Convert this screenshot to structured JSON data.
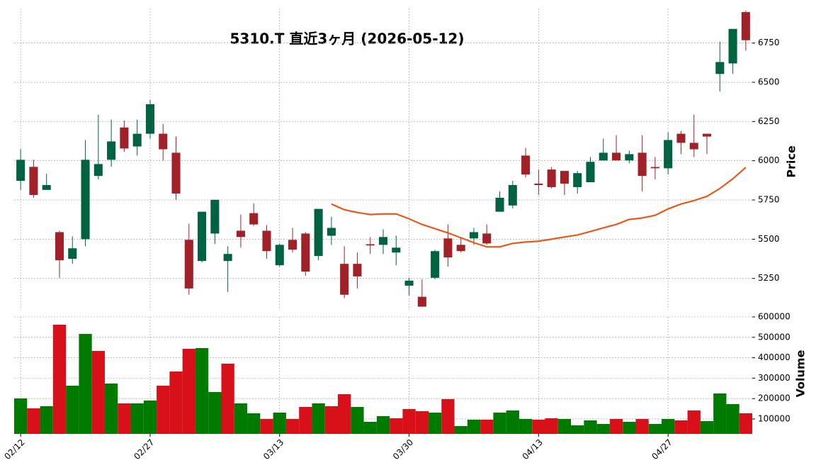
{
  "chart_data": [
    {
      "type": "candlestick",
      "title": "5310.T  直近3ヶ月  (2026-05-12)",
      "y_label": "Price",
      "categories": [
        "02/12",
        null,
        null,
        null,
        null,
        null,
        null,
        null,
        null,
        null,
        "02/27",
        null,
        null,
        null,
        null,
        null,
        null,
        null,
        null,
        null,
        "03/13",
        null,
        null,
        null,
        null,
        null,
        null,
        null,
        null,
        null,
        "03/30",
        null,
        null,
        null,
        null,
        null,
        null,
        null,
        null,
        null,
        "04/13",
        null,
        null,
        null,
        null,
        null,
        null,
        null,
        null,
        null,
        "04/27",
        null,
        null,
        null,
        null,
        null,
        null
      ],
      "open": [
        5872,
        5961,
        5814,
        5545,
        5375,
        5500,
        5903,
        6006,
        6212,
        6091,
        6172,
        6172,
        6051,
        5496,
        5361,
        5536,
        5361,
        5554,
        5666,
        5554,
        5334,
        5496,
        5536,
        5393,
        5522,
        5343,
        5343,
        5468,
        5464,
        5415,
        5204,
        5133,
        5254,
        5505,
        5464,
        5505,
        5536,
        5675,
        5715,
        6033,
        5854,
        5944,
        5935,
        5832,
        5863,
        6002,
        6051,
        6002,
        6051,
        5960,
        5952,
        6172,
        6114,
        6172,
        6553,
        6620,
        6947
      ],
      "high": [
        6073,
        6006,
        5917,
        5554,
        5518,
        6132,
        6293,
        6262,
        6257,
        6262,
        6387,
        6235,
        6154,
        5599,
        5675,
        5751,
        5455,
        5657,
        5729,
        5590,
        5473,
        5572,
        5545,
        5693,
        5643,
        5455,
        5415,
        5514,
        5563,
        5522,
        5254,
        5245,
        5433,
        5594,
        5514,
        5572,
        5594,
        5805,
        5872,
        6082,
        5944,
        5961,
        5935,
        5935,
        6024,
        6141,
        6163,
        6064,
        6163,
        6024,
        6181,
        6190,
        6293,
        6172,
        6759,
        6840,
        6956
      ],
      "low": [
        5814,
        5764,
        5814,
        5254,
        5343,
        5455,
        5881,
        5961,
        6056,
        6033,
        6141,
        6002,
        5751,
        5146,
        5352,
        5469,
        5164,
        5446,
        5585,
        5375,
        5325,
        5415,
        5267,
        5366,
        5464,
        5124,
        5186,
        5406,
        5406,
        5334,
        5142,
        5070,
        5245,
        5325,
        5415,
        5464,
        5464,
        5675,
        5697,
        5894,
        5782,
        5823,
        5782,
        5791,
        5863,
        6002,
        6002,
        5984,
        5805,
        5881,
        5912,
        6042,
        6024,
        6042,
        6441,
        6553,
        6701
      ],
      "close": [
        6006,
        5782,
        5845,
        5366,
        5442,
        6006,
        5979,
        6123,
        6078,
        6172,
        6360,
        6073,
        5791,
        5186,
        5675,
        5751,
        5406,
        5514,
        5594,
        5424,
        5464,
        5433,
        5294,
        5693,
        5572,
        5146,
        5263,
        5460,
        5514,
        5446,
        5236,
        5070,
        5424,
        5384,
        5424,
        5545,
        5473,
        5764,
        5845,
        5912,
        5845,
        5832,
        5854,
        5921,
        5993,
        6051,
        6002,
        6042,
        5903,
        5952,
        6132,
        6114,
        6073,
        6154,
        6629,
        6840,
        6768
      ],
      "up_color": "#006340",
      "down_color": "#a02128",
      "ma": {
        "color": "#e8591a",
        "values": [
          null,
          null,
          null,
          null,
          null,
          null,
          null,
          null,
          null,
          null,
          null,
          null,
          null,
          null,
          null,
          null,
          null,
          null,
          null,
          null,
          null,
          null,
          null,
          null,
          5724,
          5688,
          5670,
          5657,
          5661,
          5661,
          5630,
          5594,
          5567,
          5540,
          5509,
          5478,
          5451,
          5451,
          5473,
          5482,
          5487,
          5500,
          5514,
          5527,
          5549,
          5572,
          5594,
          5626,
          5635,
          5652,
          5693,
          5724,
          5746,
          5773,
          5823,
          5885,
          5957
        ]
      },
      "ylim": [
        5050,
        6970
      ],
      "yticks": [
        5250,
        5500,
        5750,
        6000,
        6250,
        6500,
        6750
      ],
      "grid": true
    },
    {
      "type": "bar",
      "y_label": "Volume",
      "values": [
        200700,
        152000,
        162500,
        561800,
        263000,
        516600,
        433300,
        273600,
        176400,
        176400,
        190300,
        263000,
        332600,
        443700,
        447200,
        232000,
        370800,
        176400,
        127800,
        100000,
        131200,
        100000,
        159000,
        176400,
        162500,
        221500,
        159000,
        86100,
        113900,
        103500,
        148600,
        138200,
        131200,
        197200,
        65300,
        96500,
        96500,
        131200,
        141700,
        100000,
        96500,
        103500,
        100000,
        68800,
        93100,
        75700,
        100000,
        86100,
        100000,
        75700,
        100000,
        93100,
        141700,
        89600,
        225000,
        172900,
        127800
      ],
      "colors": [
        "#007a00",
        "#d7101a",
        "#007a00",
        "#d7101a",
        "#007a00",
        "#007a00",
        "#d7101a",
        "#007a00",
        "#d7101a",
        "#007a00",
        "#007a00",
        "#d7101a",
        "#d7101a",
        "#d7101a",
        "#007a00",
        "#007a00",
        "#d7101a",
        "#007a00",
        "#007a00",
        "#d7101a",
        "#007a00",
        "#d7101a",
        "#d7101a",
        "#007a00",
        "#d7101a",
        "#d7101a",
        "#007a00",
        "#007a00",
        "#007a00",
        "#d7101a",
        "#d7101a",
        "#d7101a",
        "#007a00",
        "#d7101a",
        "#007a00",
        "#007a00",
        "#d7101a",
        "#007a00",
        "#007a00",
        "#007a00",
        "#d7101a",
        "#d7101a",
        "#007a00",
        "#007a00",
        "#007a00",
        "#007a00",
        "#d7101a",
        "#007a00",
        "#d7101a",
        "#007a00",
        "#007a00",
        "#d7101a",
        "#d7101a",
        "#007a00",
        "#007a00",
        "#007a00",
        "#d7101a"
      ],
      "ylim": [
        27000,
        600000
      ],
      "yticks": [
        100000,
        200000,
        300000,
        400000,
        500000,
        600000
      ],
      "grid": true
    }
  ]
}
